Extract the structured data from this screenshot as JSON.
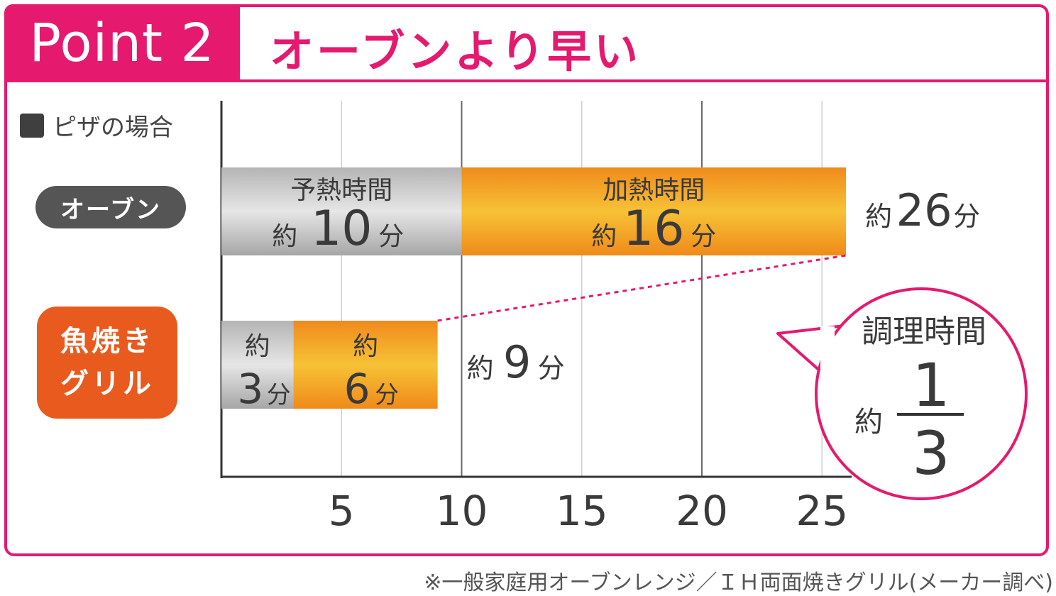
{
  "header": {
    "badge": "Point 2",
    "headline": "オーブンより早い"
  },
  "legend": {
    "label": "ピザの場合"
  },
  "rows": {
    "oven": "オーブン",
    "grill_line1": "魚焼き",
    "grill_line2": "グリル"
  },
  "chart_data": {
    "type": "bar",
    "orientation": "horizontal",
    "stacked": true,
    "categories": [
      "オーブン",
      "魚焼きグリル"
    ],
    "series": [
      {
        "name": "予熱時間",
        "values": [
          10,
          3
        ]
      },
      {
        "name": "加熱時間",
        "values": [
          16,
          6
        ]
      }
    ],
    "totals": [
      26,
      9
    ],
    "xticks": [
      5,
      10,
      15,
      20,
      25
    ],
    "xlim": [
      0,
      27
    ],
    "grid": true,
    "segment_labels": {
      "oven_preheat_title": "予熱時間",
      "oven_preheat_prefix": "約",
      "oven_preheat_value": "10",
      "oven_preheat_unit": "分",
      "oven_heat_title": "加熱時間",
      "oven_heat_prefix": "約",
      "oven_heat_value": "16",
      "oven_heat_unit": "分",
      "grill_preheat_prefix": "約",
      "grill_preheat_value": "3",
      "grill_preheat_unit": "分",
      "grill_heat_prefix": "約",
      "grill_heat_value": "6",
      "grill_heat_unit": "分"
    },
    "total_labels": {
      "oven_prefix": "約",
      "oven_value": "26",
      "oven_unit": "分",
      "grill_prefix": "約",
      "grill_value": "9",
      "grill_unit": "分"
    },
    "callout": {
      "title": "調理時間",
      "prefix": "約",
      "numerator": "1",
      "denominator": "3"
    }
  },
  "colors": {
    "accent": "#e5196e",
    "preheat": "#9a9a9a",
    "heat": "#f39a1c",
    "grill_pill": "#e85a1e",
    "oven_pill": "#555555"
  },
  "footnote": "※一般家庭用オーブンレンジ／ＩＨ両面焼きグリル(メーカー調べ)"
}
